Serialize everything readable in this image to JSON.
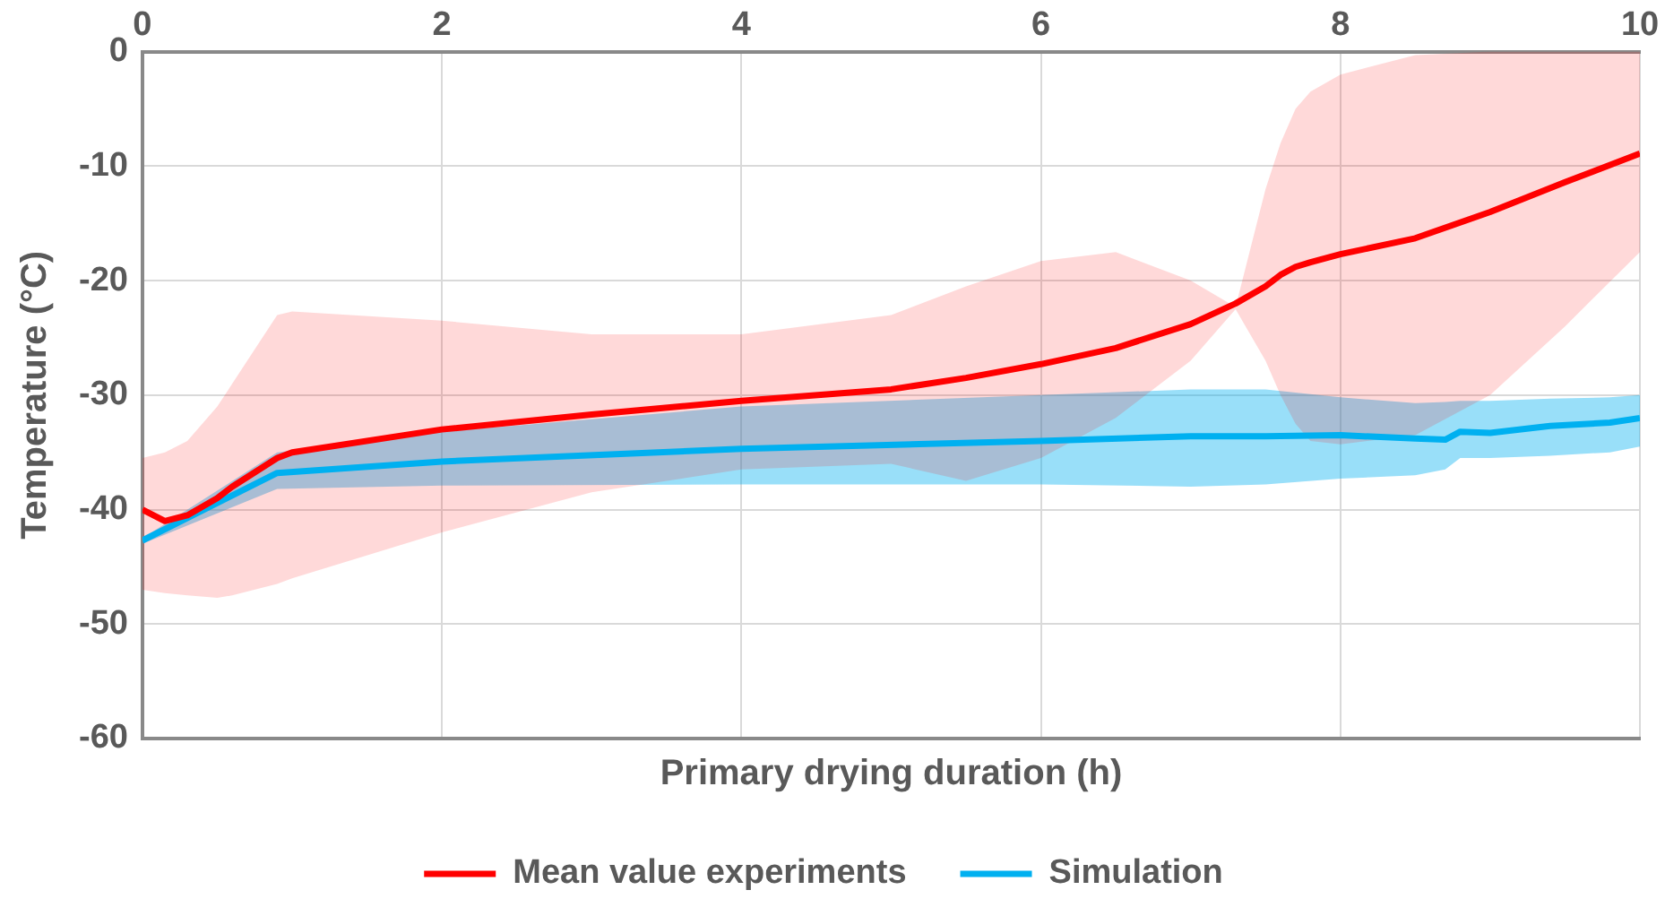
{
  "chart_data": {
    "type": "line",
    "xlabel": "Primary drying duration (h)",
    "ylabel": "Temperature (°C)",
    "xlim": [
      0,
      10
    ],
    "xticks": [
      0,
      2,
      4,
      6,
      8,
      10
    ],
    "ylim": [
      -60,
      0
    ],
    "yticks": [
      -60,
      -50,
      -40,
      -30,
      -20,
      -10,
      0
    ],
    "grid": true,
    "legend": "bottom",
    "marker": "none",
    "line_style": "solid",
    "series": [
      {
        "name": "Mean value experiments",
        "color": "#ff0000",
        "x": [
          0,
          0.15,
          0.3,
          0.5,
          0.6,
          0.9,
          1,
          2,
          3,
          4,
          5,
          5.5,
          6,
          6.5,
          7,
          7.3,
          7.5,
          7.6,
          7.7,
          7.8,
          8,
          8.5,
          9,
          9.5,
          10
        ],
        "values": [
          -40,
          -41,
          -40.5,
          -39,
          -38,
          -35.5,
          -35,
          -33,
          -31.7,
          -30.5,
          -29.5,
          -28.5,
          -27.3,
          -25.9,
          -23.8,
          -22,
          -20.5,
          -19.5,
          -18.8,
          -18.4,
          -17.7,
          -16.3,
          -14,
          -11.4,
          -8.9
        ],
        "upper": [
          -35.5,
          -35,
          -34,
          -31,
          -29,
          -23,
          -22.7,
          -23.5,
          -24.7,
          -24.7,
          -23,
          -20.5,
          -18.3,
          -17.5,
          -20,
          -22.3,
          -12,
          -8,
          -5,
          -3.5,
          -2,
          -0.3,
          0,
          0,
          0
        ],
        "lower": [
          -47,
          -47.3,
          -47.5,
          -47.7,
          -47.5,
          -46.5,
          -46,
          -42,
          -38.5,
          -36.5,
          -36,
          -37.5,
          -35.5,
          -32,
          -27,
          -22.5,
          -27,
          -30,
          -32.5,
          -34,
          -34.3,
          -33.5,
          -30,
          -24,
          -17.5
        ]
      },
      {
        "name": "Simulation",
        "color": "#00b0f0",
        "x": [
          0,
          0.9,
          2,
          4,
          6,
          7,
          7.5,
          8,
          8.5,
          8.7,
          8.8,
          9,
          9.4,
          9.8,
          10
        ],
        "values": [
          -42.7,
          -36.8,
          -35.8,
          -34.7,
          -34,
          -33.6,
          -33.6,
          -33.5,
          -33.8,
          -33.9,
          -33.2,
          -33.3,
          -32.7,
          -32.4,
          -32
        ],
        "upper": [
          -42.5,
          -35,
          -33.2,
          -31,
          -30,
          -29.5,
          -29.5,
          -30.2,
          -30.7,
          -30.6,
          -30.5,
          -30.5,
          -30.3,
          -30.2,
          -30
        ],
        "lower": [
          -43,
          -38.2,
          -37.9,
          -37.8,
          -37.8,
          -38,
          -37.8,
          -37.3,
          -37,
          -36.5,
          -35.5,
          -35.5,
          -35.3,
          -35,
          -34.5
        ]
      }
    ]
  }
}
